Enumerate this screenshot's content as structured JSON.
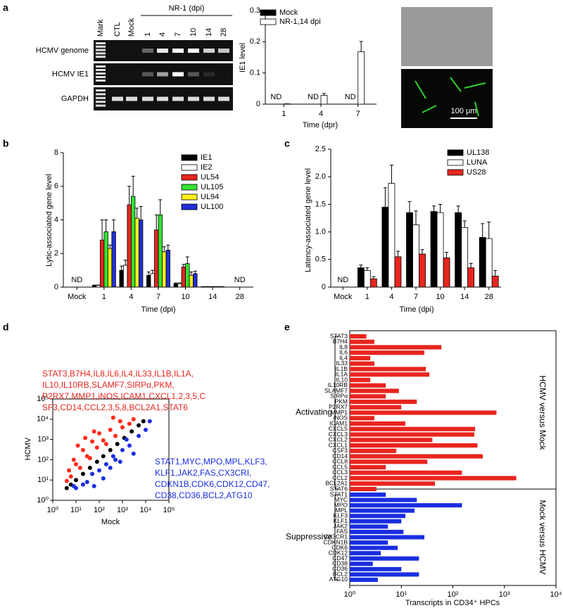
{
  "panels": [
    "a",
    "b",
    "c",
    "d",
    "e"
  ],
  "gel": {
    "header": "NR-1 (dpi)",
    "lanes": [
      "Mark",
      "CTL",
      "Mock",
      "1",
      "4",
      "7",
      "10",
      "14",
      "28"
    ],
    "rows": [
      "HCMV genome",
      "HCMV IE1",
      "GAPDH"
    ]
  },
  "micrograph": {
    "scale_bar": "100 μm"
  },
  "chart_data": [
    {
      "type": "bar",
      "ylabel": "IE1 level",
      "xlabel": "Time (dpr)",
      "categories": [
        "1",
        "4",
        "7"
      ],
      "ylim": [
        0,
        0.3
      ],
      "yticks": [
        0,
        0.1,
        0.2,
        0.3
      ],
      "series": [
        {
          "name": "Mock",
          "color": "#000000",
          "values": [
            null,
            null,
            null
          ],
          "value_labels": [
            "ND",
            "ND",
            "ND"
          ]
        },
        {
          "name": "NR-1,14 dpi",
          "color": "#ffffff",
          "values": [
            0.001,
            0.028,
            0.168
          ],
          "errors": [
            0,
            0.006,
            0.033
          ]
        }
      ]
    },
    {
      "type": "bar",
      "ylabel": "Lytic-associated gene level",
      "xlabel": "Time (dpi)",
      "categories": [
        "Mock",
        "1",
        "4",
        "7",
        "10",
        "14",
        "28"
      ],
      "ylim": [
        0,
        8
      ],
      "yticks": [
        0,
        2,
        4,
        6,
        8
      ],
      "series": [
        {
          "name": "IE1",
          "color": "#000000",
          "values": [
            null,
            0.1,
            1.0,
            0.7,
            0.2,
            0.02,
            null
          ],
          "errors": [
            null,
            0.02,
            0.25,
            0.2,
            0.05,
            0.01,
            null
          ],
          "value_labels": [
            "ND",
            null,
            null,
            null,
            null,
            null,
            "ND"
          ]
        },
        {
          "name": "IE2",
          "color": "#ffffff",
          "values": [
            null,
            0.1,
            1.3,
            0.8,
            0.2,
            0.02,
            null
          ],
          "errors": [
            null,
            0.02,
            0.3,
            0.2,
            0.05,
            0.01,
            null
          ]
        },
        {
          "name": "UL54",
          "color": "#e8251f",
          "values": [
            null,
            2.8,
            4.9,
            3.4,
            1.2,
            0.02,
            null
          ],
          "errors": [
            null,
            1.2,
            1.1,
            0.9,
            0.15,
            0.01,
            null
          ]
        },
        {
          "name": "UL105",
          "color": "#33e233",
          "values": [
            null,
            3.3,
            5.4,
            4.3,
            1.4,
            0.02,
            null
          ],
          "errors": [
            null,
            0.7,
            1.2,
            0.9,
            0.4,
            0.01,
            null
          ]
        },
        {
          "name": "UL94",
          "color": "#ffef1a",
          "values": [
            null,
            2.3,
            4.1,
            2.1,
            0.7,
            0.02,
            null
          ],
          "errors": [
            null,
            0.2,
            0.6,
            0.3,
            0.2,
            0.01,
            null
          ]
        },
        {
          "name": "UL100",
          "color": "#1f2fd6",
          "values": [
            null,
            3.3,
            4.0,
            2.2,
            0.8,
            0.02,
            null
          ],
          "errors": [
            null,
            0.7,
            0.8,
            0.3,
            0.15,
            0.01,
            null
          ]
        }
      ]
    },
    {
      "type": "bar",
      "ylabel": "Latency-associated gene level",
      "xlabel": "Time (dpi)",
      "categories": [
        "Mock",
        "1",
        "4",
        "7",
        "10",
        "14",
        "28"
      ],
      "ylim": [
        0,
        2.5
      ],
      "yticks": [
        0,
        0.5,
        {
          "value": 1,
          "label": "1.0"
        },
        1.5,
        {
          "value": 2,
          "label": "2.0"
        },
        2.5
      ],
      "series": [
        {
          "name": "UL138",
          "color": "#000000",
          "values": [
            null,
            0.35,
            1.45,
            1.35,
            1.37,
            1.35,
            0.9
          ],
          "errors": [
            null,
            0.05,
            0.35,
            0.2,
            0.1,
            0.12,
            0.25
          ],
          "value_labels": [
            "ND",
            null,
            null,
            null,
            null,
            null,
            null
          ]
        },
        {
          "name": "LUNA",
          "color": "#ffffff",
          "values": [
            null,
            0.3,
            1.88,
            1.13,
            1.35,
            1.08,
            0.88
          ],
          "errors": [
            null,
            0.05,
            0.33,
            0.25,
            0.15,
            0.12,
            0.3
          ]
        },
        {
          "name": "US28",
          "color": "#e8251f",
          "values": [
            null,
            0.15,
            0.55,
            0.6,
            0.53,
            0.35,
            0.2
          ],
          "errors": [
            null,
            0.04,
            0.1,
            0.08,
            0.1,
            0.08,
            0.1
          ]
        }
      ]
    },
    {
      "type": "scatter",
      "xlabel": "Mock",
      "ylabel": "HCMV",
      "log_x": true,
      "log_y": true,
      "xlim": [
        1,
        100000
      ],
      "ylim": [
        1,
        100000
      ],
      "xticks": [
        {
          "value": 1,
          "label": "10⁰"
        },
        {
          "value": 10,
          "label": "10¹"
        },
        {
          "value": 100,
          "label": "10²"
        },
        {
          "value": 1000,
          "label": "10³"
        },
        {
          "value": 10000,
          "label": "10⁴"
        },
        {
          "value": 100000,
          "label": "10⁵"
        }
      ],
      "yticks": [
        {
          "value": 1,
          "label": "10⁰"
        },
        {
          "value": 10,
          "label": "10¹"
        },
        {
          "value": 100,
          "label": "10²"
        },
        {
          "value": 1000,
          "label": "10³"
        },
        {
          "value": 10000,
          "label": "10⁴"
        },
        {
          "value": 100000,
          "label": "10⁵"
        }
      ],
      "series": [
        {
          "color": "#ff2a1a",
          "x": [
            5,
            8,
            10,
            20,
            30,
            50,
            80,
            100,
            150,
            300,
            500,
            800,
            1000,
            2000,
            3000,
            6,
            15,
            40,
            200,
            4,
            60,
            400,
            12,
            25
          ],
          "y": [
            30,
            100,
            60,
            300,
            150,
            800,
            400,
            2000,
            900,
            3000,
            1500,
            8000,
            4000,
            6000,
            10000,
            15,
            40,
            120,
            600,
            9,
            2500,
            12000,
            500,
            1200
          ]
        },
        {
          "color": "#000000",
          "x": [
            4,
            6,
            10,
            20,
            40,
            80,
            150,
            300,
            600,
            1200,
            2500,
            5000,
            8000
          ],
          "y": [
            4,
            6,
            10,
            20,
            40,
            80,
            150,
            300,
            600,
            1200,
            2500,
            5000,
            8000
          ]
        },
        {
          "color": "#1a2ee0",
          "x": [
            10,
            30,
            50,
            100,
            200,
            500,
            1000,
            2000,
            5000,
            10000,
            15000,
            20,
            300,
            800,
            3000,
            8,
            60,
            150,
            1500,
            400
          ],
          "y": [
            4,
            8,
            20,
            30,
            60,
            100,
            300,
            500,
            1500,
            3000,
            8000,
            6,
            40,
            80,
            200,
            5,
            5,
            12,
            1000,
            150
          ]
        }
      ],
      "annotations": [
        {
          "color": "#e8251f",
          "lines": [
            "STAT3,B7H4,IL8,IL6,IL4,IL33,IL1B,IL1A,",
            "IL10,IL10RB,SLAMF7,SIRPα,PKM,",
            "P2RX7,MMP1,iNOS,ICAM1,CXCL1,2,3,5,C",
            "SF3,CD14,CCL2,3,5,8,BCL2A1,STAT6"
          ]
        },
        {
          "color": "#1a2ee0",
          "lines": [
            "STAT1,MYC,MPO,MPL,KLF3,",
            "KLF1,JAK2,FAS,CX3CRI,",
            "CDKN1B,CDK6,CDK12,CD47,",
            "CD38,CD36,BCL2,ATG10"
          ]
        }
      ]
    },
    {
      "type": "hbar",
      "xlabel": "Transcripts in CD34⁺ HPCs",
      "log_x": true,
      "xlim": [
        1,
        10000
      ],
      "xticks": [
        {
          "value": 1,
          "label": "10⁰"
        },
        {
          "value": 10,
          "label": "10¹"
        },
        {
          "value": 100,
          "label": "10²"
        },
        {
          "value": 1000,
          "label": "10³"
        },
        {
          "value": 10000,
          "label": "10⁴"
        }
      ],
      "groups": [
        {
          "name": "Activating",
          "side_label": "HCMV versus Mock",
          "color": "#e8251f",
          "categories": [
            "STAT3",
            "B7H4",
            "IL8",
            "IL6",
            "IL4",
            "IL33",
            "IL1B",
            "IL1A",
            "IL10",
            "IL10RB",
            "SLAMF7",
            "SIRPα",
            "PKM",
            "P2RX7",
            "MMP1",
            "iNOS",
            "ICAM1",
            "CXCL5",
            "CXCL3",
            "CXCL2",
            "CXCL1",
            "CSF3",
            "CD14",
            "CCL8",
            "CCL5",
            "CCL3",
            "CCL2",
            "BCL2A1",
            "STAT6"
          ],
          "values": [
            2.1,
            3,
            60,
            28,
            2.5,
            3,
            30,
            35,
            2.5,
            5,
            9,
            5,
            20,
            10,
            700,
            3,
            12,
            270,
            260,
            40,
            300,
            8,
            380,
            32,
            5,
            150,
            1700,
            45,
            3.3
          ]
        },
        {
          "name": "Suppressive",
          "side_label": "Mock versus HCMV",
          "color": "#1a2ee0",
          "categories": [
            "STAT1",
            "MYC",
            "MPO",
            "MPL",
            "KLF3",
            "KLF1",
            "JAK2",
            "FAS",
            "CX3CR1",
            "CDKN1B",
            "CDK6",
            "CDK12",
            "CD47",
            "CD38",
            "CD36",
            "BCL2",
            "ATG10"
          ],
          "values": [
            5,
            20,
            150,
            18,
            12,
            10,
            5.5,
            11,
            28,
            5.5,
            8.5,
            4,
            22,
            2.8,
            10,
            22,
            3.5
          ]
        }
      ]
    }
  ]
}
